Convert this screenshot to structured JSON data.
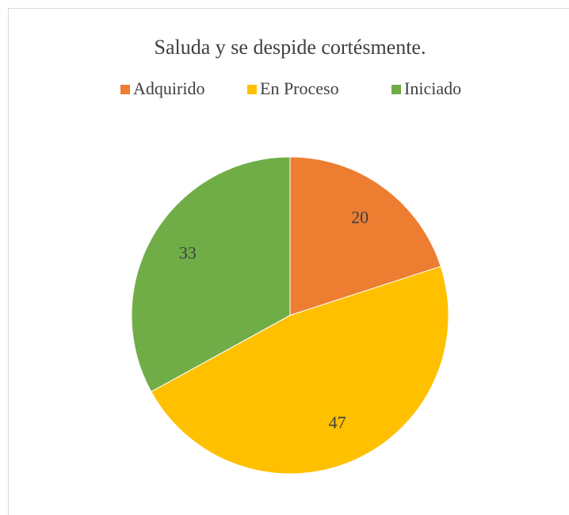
{
  "chart_data": {
    "type": "pie",
    "title": "Saluda y se despide cortésmente.",
    "categories": [
      "Adquirido",
      "En Proceso",
      "Iniciado"
    ],
    "values": [
      20,
      47,
      33
    ],
    "colors": [
      "#ED7D31",
      "#FFC000",
      "#70AD47"
    ],
    "legend": "top"
  }
}
